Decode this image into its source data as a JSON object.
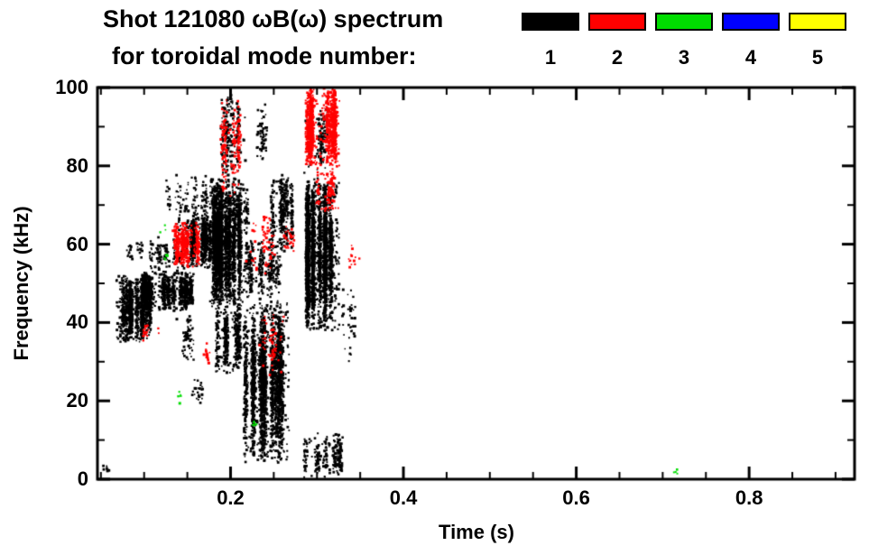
{
  "figure": {
    "title_line1": "Shot 121080 ωB(ω) spectrum",
    "title_line2": "for toroidal mode number:"
  },
  "legend": {
    "modes": [
      {
        "label": "1",
        "color": "#000000"
      },
      {
        "label": "2",
        "color": "#ff0000"
      },
      {
        "label": "3",
        "color": "#00dd00"
      },
      {
        "label": "4",
        "color": "#0000ff"
      },
      {
        "label": "5",
        "color": "#ffff00"
      }
    ]
  },
  "chart_data": {
    "type": "scatter",
    "title": "Shot 121080 ωB(ω) spectrum for toroidal mode number: 1 2 3 4 5",
    "xlabel": "Time (s)",
    "ylabel": "Frequency (kHz)",
    "xlim": [
      0.046,
      0.922
    ],
    "ylim": [
      0,
      100
    ],
    "x_major_ticks": [
      0.2,
      0.4,
      0.6,
      0.8
    ],
    "x_tick_labels": [
      "0.2",
      "0.4",
      "0.6",
      "0.8"
    ],
    "x_minor_step": 0.05,
    "y_major_ticks": [
      0,
      20,
      40,
      60,
      80,
      100
    ],
    "y_tick_labels": [
      "0",
      "20",
      "40",
      "60",
      "80",
      "100"
    ],
    "y_minor_step": 10,
    "grid": false,
    "legend_position": "top-right",
    "series_note": "dense speckle activity approximated as clusters: bounding box [t0,t1] s x [f0,f1] kHz, point count n, vertical streak count; mode = toroidal mode number (1=black, 2=red, 3=green)",
    "clusters": [
      {
        "mode": 1,
        "t": [
          0.068,
          0.108
        ],
        "f": [
          35,
          52
        ],
        "n": 1100,
        "streaks": 10
      },
      {
        "mode": 1,
        "t": [
          0.1,
          0.158
        ],
        "f": [
          43,
          53
        ],
        "n": 1100,
        "streaks": 12
      },
      {
        "mode": 1,
        "t": [
          0.108,
          0.145
        ],
        "f": [
          53,
          62
        ],
        "n": 130,
        "streaks": 6
      },
      {
        "mode": 1,
        "t": [
          0.125,
          0.175
        ],
        "f": [
          62,
          78
        ],
        "n": 160,
        "streaks": 8
      },
      {
        "mode": 1,
        "t": [
          0.148,
          0.178
        ],
        "f": [
          54,
          67
        ],
        "n": 600,
        "streaks": 7
      },
      {
        "mode": 1,
        "t": [
          0.175,
          0.215
        ],
        "f": [
          44,
          77
        ],
        "n": 2600,
        "streaks": 10
      },
      {
        "mode": 1,
        "t": [
          0.183,
          0.212
        ],
        "f": [
          27,
          45
        ],
        "n": 450,
        "streaks": 6
      },
      {
        "mode": 1,
        "t": [
          0.19,
          0.218
        ],
        "f": [
          77,
          100
        ],
        "n": 220,
        "streaks": 5
      },
      {
        "mode": 1,
        "t": [
          0.215,
          0.268
        ],
        "f": [
          4,
          45
        ],
        "n": 2300,
        "streaks": 12
      },
      {
        "mode": 1,
        "t": [
          0.214,
          0.262
        ],
        "f": [
          45,
          62
        ],
        "n": 350,
        "streaks": 8
      },
      {
        "mode": 1,
        "t": [
          0.248,
          0.272
        ],
        "f": [
          58,
          78
        ],
        "n": 350,
        "streaks": 6
      },
      {
        "mode": 1,
        "t": [
          0.222,
          0.242
        ],
        "f": [
          80,
          96
        ],
        "n": 60,
        "streaks": 4
      },
      {
        "mode": 1,
        "t": [
          0.288,
          0.326
        ],
        "f": [
          38,
          77
        ],
        "n": 2600,
        "streaks": 9
      },
      {
        "mode": 1,
        "t": [
          0.285,
          0.312
        ],
        "f": [
          78,
          96
        ],
        "n": 130,
        "streaks": 5
      },
      {
        "mode": 1,
        "t": [
          0.286,
          0.332
        ],
        "f": [
          0,
          12
        ],
        "n": 260,
        "streaks": 8
      },
      {
        "mode": 1,
        "t": [
          0.328,
          0.345
        ],
        "f": [
          28,
          50
        ],
        "n": 40,
        "streaks": 4
      },
      {
        "mode": 1,
        "t": [
          0.048,
          0.058
        ],
        "f": [
          1,
          4
        ],
        "n": 8,
        "streaks": 1
      },
      {
        "mode": 1,
        "t": [
          0.075,
          0.1
        ],
        "f": [
          55,
          62
        ],
        "n": 30,
        "streaks": 3
      },
      {
        "mode": 1,
        "t": [
          0.13,
          0.17
        ],
        "f": [
          30,
          42
        ],
        "n": 60,
        "streaks": 5
      },
      {
        "mode": 1,
        "t": [
          0.155,
          0.175
        ],
        "f": [
          18,
          26
        ],
        "n": 25,
        "streaks": 2
      },
      {
        "mode": 1,
        "t": [
          0.205,
          0.22
        ],
        "f": [
          62,
          75
        ],
        "n": 120,
        "streaks": 3
      },
      {
        "mode": 2,
        "t": [
          0.133,
          0.163
        ],
        "f": [
          54,
          66
        ],
        "n": 420,
        "streaks": 6
      },
      {
        "mode": 2,
        "t": [
          0.1,
          0.118
        ],
        "f": [
          35,
          40
        ],
        "n": 18,
        "streaks": 2
      },
      {
        "mode": 2,
        "t": [
          0.19,
          0.215
        ],
        "f": [
          72,
          98
        ],
        "n": 170,
        "streaks": 5
      },
      {
        "mode": 2,
        "t": [
          0.218,
          0.252
        ],
        "f": [
          52,
          70
        ],
        "n": 70,
        "streaks": 5
      },
      {
        "mode": 2,
        "t": [
          0.232,
          0.262
        ],
        "f": [
          26,
          44
        ],
        "n": 60,
        "streaks": 4
      },
      {
        "mode": 2,
        "t": [
          0.288,
          0.326
        ],
        "f": [
          80,
          100
        ],
        "n": 1100,
        "streaks": 8
      },
      {
        "mode": 2,
        "t": [
          0.296,
          0.325
        ],
        "f": [
          68,
          80
        ],
        "n": 110,
        "streaks": 5
      },
      {
        "mode": 2,
        "t": [
          0.34,
          0.35
        ],
        "f": [
          54,
          60
        ],
        "n": 14,
        "streaks": 1
      },
      {
        "mode": 2,
        "t": [
          0.262,
          0.276
        ],
        "f": [
          56,
          66
        ],
        "n": 25,
        "streaks": 2
      },
      {
        "mode": 2,
        "t": [
          0.163,
          0.175
        ],
        "f": [
          28,
          36
        ],
        "n": 15,
        "streaks": 2
      },
      {
        "mode": 3,
        "t": [
          0.126,
          0.132
        ],
        "f": [
          55,
          58
        ],
        "n": 5,
        "streaks": 1
      },
      {
        "mode": 3,
        "t": [
          0.14,
          0.147
        ],
        "f": [
          19,
          23
        ],
        "n": 6,
        "streaks": 1
      },
      {
        "mode": 3,
        "t": [
          0.227,
          0.234
        ],
        "f": [
          12,
          16
        ],
        "n": 6,
        "streaks": 1
      },
      {
        "mode": 3,
        "t": [
          0.712,
          0.718
        ],
        "f": [
          0.5,
          2.5
        ],
        "n": 4,
        "streaks": 1
      },
      {
        "mode": 3,
        "t": [
          0.118,
          0.124
        ],
        "f": [
          63,
          66
        ],
        "n": 3,
        "streaks": 1
      }
    ]
  }
}
